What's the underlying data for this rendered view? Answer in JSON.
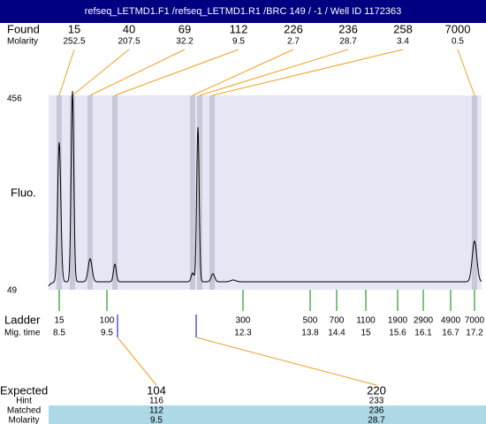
{
  "title": "refseq_LETMD1.F1 /refseq_LETMD1.R1 /BRC 149 / -1 / Well ID 1172363",
  "found": {
    "label": "Found",
    "values": [
      15,
      40,
      69,
      112,
      226,
      236,
      258,
      7000
    ]
  },
  "found_molarity": {
    "label": "Molarity",
    "values": [
      252.5,
      207.5,
      32.2,
      9.5,
      2.7,
      28.7,
      3.4,
      0.5
    ]
  },
  "y_axis": {
    "label": "Fluo.",
    "max": 456,
    "min": 49
  },
  "ladder": {
    "label": "Ladder",
    "values": [
      15,
      100,
      300,
      500,
      700,
      1100,
      1900,
      2900,
      4900,
      7000
    ]
  },
  "mig_time": {
    "label": "Mig. time",
    "values": [
      8.5,
      9.5,
      12.3,
      13.8,
      14.4,
      15,
      15.6,
      16.1,
      16.7,
      17.2
    ]
  },
  "expected": {
    "label": "Expected",
    "values": [
      104,
      220
    ]
  },
  "hint": {
    "label": "Hint",
    "values": [
      116,
      233
    ]
  },
  "matched": {
    "label": "Matched",
    "values": [
      112,
      236
    ]
  },
  "matched_molarity": {
    "label": "Molarity",
    "values": [
      9.5,
      28.7
    ]
  }
}
